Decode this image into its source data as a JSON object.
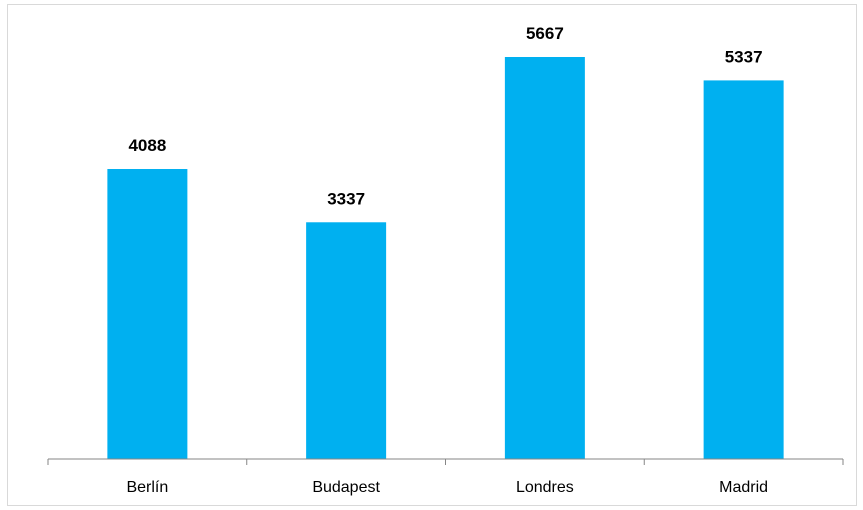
{
  "chart_data": {
    "type": "bar",
    "categories": [
      "Berlín",
      "Budapest",
      "Londres",
      "Madrid"
    ],
    "values": [
      4088,
      3337,
      5667,
      5337
    ],
    "data_labels": [
      "4088",
      "3337",
      "5667",
      "5337"
    ],
    "title": "",
    "xlabel": "",
    "ylabel": "",
    "ylim": [
      0,
      6000
    ],
    "grid": false,
    "legend": "none",
    "bar_color": "#00b0f0",
    "axis_color": "#868686"
  }
}
